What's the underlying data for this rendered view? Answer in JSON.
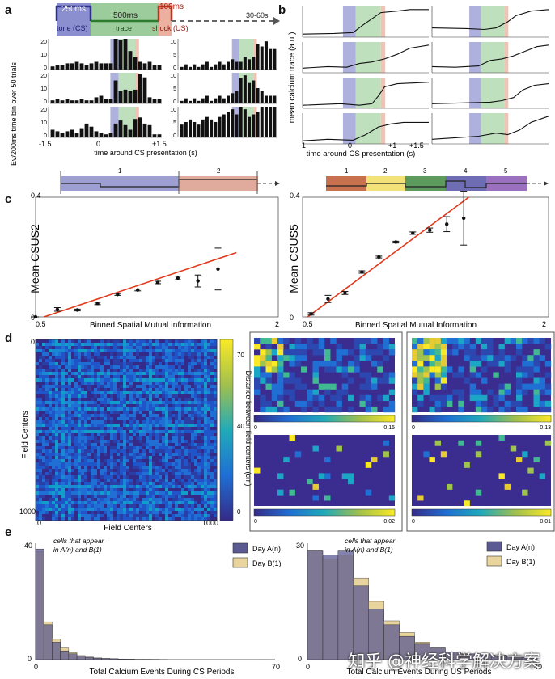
{
  "panels": {
    "a": "a",
    "b": "b",
    "c": "c",
    "d": "d",
    "e": "e"
  },
  "panel_a": {
    "timing": {
      "tone": "250ms",
      "trace": "500ms",
      "shock": "100ms",
      "iti": "30-60s"
    },
    "segment_labels": {
      "tone": "tone (CS)",
      "trace": "trace",
      "shock": "shock (US)"
    },
    "ylabel": "Ca Ev/200ms time bin over 50 trials",
    "xlabel": "time around CS presentation (s)",
    "ticks": {
      "left": "-1.5",
      "zero": "0",
      "right": "+1.5"
    },
    "ymax_left": [
      "20",
      "20",
      "20"
    ],
    "ymax_right": [
      "10",
      "10",
      "10"
    ],
    "ymid_left": [
      "10",
      "10",
      "10"
    ],
    "ymid_right": [
      "5",
      "5",
      "5"
    ],
    "zero": "0",
    "hist": [
      [
        2,
        3,
        3,
        4,
        4,
        5,
        4,
        3,
        4,
        5,
        4,
        4,
        4,
        20,
        19,
        21,
        12,
        8,
        5,
        4,
        5,
        3,
        3
      ],
      [
        2,
        3,
        2,
        3,
        2,
        2,
        3,
        2,
        2,
        4,
        5,
        3,
        3,
        15,
        8,
        9,
        8,
        9,
        19,
        17,
        4,
        3,
        3
      ],
      [
        5,
        4,
        3,
        4,
        5,
        3,
        6,
        9,
        7,
        4,
        3,
        2,
        3,
        9,
        11,
        8,
        5,
        12,
        13,
        9,
        8,
        2,
        2
      ],
      [
        1,
        2,
        1,
        2,
        1,
        2,
        3,
        1,
        2,
        3,
        2,
        3,
        4,
        3,
        3,
        5,
        4,
        5,
        10,
        9,
        11,
        8,
        8
      ],
      [
        1,
        2,
        1,
        2,
        1,
        2,
        3,
        1,
        2,
        3,
        2,
        3,
        4,
        5,
        10,
        11,
        8,
        9,
        6,
        5,
        3,
        3,
        3
      ],
      [
        5,
        6,
        7,
        6,
        5,
        7,
        8,
        7,
        6,
        8,
        9,
        10,
        11,
        9,
        12,
        11,
        8,
        9,
        10,
        12,
        14,
        15,
        14
      ]
    ]
  },
  "panel_b": {
    "ylabel": "mean calcium trace (a.u.)",
    "xlabel": "time around CS presentation (s)",
    "ticks": {
      "left": "-1",
      "zero": "0",
      "p1": "+1",
      "p15": "+1.5"
    }
  },
  "panel_c": {
    "left": {
      "ylabel": "Mean CSUS2",
      "xlabel": "Binned Spatial Mutual Information",
      "xticks": {
        "min": "0.5",
        "max": "2"
      },
      "yticks": {
        "top": "0.4",
        "zero": "0"
      },
      "bins": [
        "1",
        "2"
      ],
      "points": [
        [
          0.45,
          0.0,
          0.0
        ],
        [
          0.58,
          0.025,
          0.006
        ],
        [
          0.7,
          0.023,
          0.003
        ],
        [
          0.82,
          0.045,
          0.004
        ],
        [
          0.94,
          0.075,
          0.003
        ],
        [
          1.06,
          0.09,
          0.003
        ],
        [
          1.18,
          0.115,
          0.004
        ],
        [
          1.3,
          0.13,
          0.006
        ],
        [
          1.42,
          0.12,
          0.02
        ],
        [
          1.54,
          0.16,
          0.07
        ]
      ],
      "fit": [
        [
          0.5,
          0.0
        ],
        [
          1.65,
          0.215
        ]
      ],
      "xlim": [
        0.45,
        1.9
      ],
      "ylim": [
        0,
        0.4
      ]
    },
    "right": {
      "ylabel": "Mean CSUS5",
      "xlabel": "Binned Spatial Mutual Information",
      "xticks": {
        "min": "0.5",
        "max": "2"
      },
      "yticks": {
        "top": "0.4",
        "zero": "0"
      },
      "bins": [
        "1",
        "2",
        "3",
        "4",
        "5"
      ],
      "points": [
        [
          0.5,
          0.01,
          0.004
        ],
        [
          0.6,
          0.06,
          0.012
        ],
        [
          0.7,
          0.08,
          0.005
        ],
        [
          0.8,
          0.15,
          0.004
        ],
        [
          0.9,
          0.2,
          0.003
        ],
        [
          1.0,
          0.25,
          0.003
        ],
        [
          1.1,
          0.28,
          0.004
        ],
        [
          1.2,
          0.29,
          0.007
        ],
        [
          1.3,
          0.31,
          0.025
        ],
        [
          1.4,
          0.33,
          0.09
        ]
      ],
      "fit": [
        [
          0.48,
          0.0
        ],
        [
          1.43,
          0.4
        ]
      ],
      "xlim": [
        0.45,
        1.9
      ],
      "ylim": [
        0,
        0.4
      ]
    }
  },
  "panel_d": {
    "ylabel": "Field Centers",
    "xlabel": "Field Centers",
    "ticks": {
      "start": "0",
      "end": "1000"
    },
    "colorbar_label": "Distance between field centers (cm)",
    "colorbar_ticks": {
      "top": "70",
      "mid": "40",
      "bottom": "0"
    },
    "maps": [
      {
        "min": "0",
        "max": "0.15"
      },
      {
        "min": "0",
        "max": "0.13"
      },
      {
        "min": "0",
        "max": "0.02"
      },
      {
        "min": "0",
        "max": "0.01"
      }
    ]
  },
  "panel_e": {
    "left": {
      "annotation": [
        "cells that appear",
        "in A(n) and B(1)"
      ],
      "legend": [
        "Day A(n)",
        "Day B(1)"
      ],
      "xlabel": "Total Calcium Events During CS Periods",
      "yticks": {
        "top": "40",
        "zero": "0"
      },
      "xticks": {
        "zero": "0",
        "max": "70"
      },
      "chart_data": {
        "type": "bar",
        "series": [
          {
            "name": "Day A(n)",
            "values": [
              38,
              12,
              6,
              3,
              2,
              1.2,
              0.8,
              0.5,
              0.4,
              0.3,
              0.2,
              0.15,
              0.1,
              0.1,
              0.1,
              0.05,
              0,
              0,
              0,
              0,
              0,
              0,
              0,
              0,
              0,
              0,
              0,
              0,
              0
            ]
          },
          {
            "name": "Day B(1)",
            "values": [
              37,
              13,
              7,
              4,
              2.4,
              1.4,
              0.9,
              0.6,
              0.4,
              0.3,
              0.2,
              0.15,
              0.1,
              0.1,
              0.05,
              0.05,
              0,
              0,
              0,
              0,
              0,
              0,
              0,
              0,
              0,
              0,
              0,
              0.05,
              0
            ]
          }
        ]
      }
    },
    "right": {
      "annotation": [
        "cells that appear",
        "in A(n) and B(1)"
      ],
      "legend": [
        "Day A(n)",
        "Day B(1)"
      ],
      "xlabel": "Total Calcium Events During US Periods",
      "yticks": {
        "top": "30",
        "zero": "0"
      },
      "xticks": {
        "zero": "0",
        "max": "40"
      },
      "chart_data": {
        "type": "bar",
        "series": [
          {
            "name": "Day A(n)",
            "values": [
              28,
              27,
              28,
              19,
              13,
              9,
              6,
              4,
              3,
              2,
              1.5,
              1.5,
              1.2,
              0.8,
              0.6
            ]
          },
          {
            "name": "Day B(1)",
            "values": [
              28,
              26,
              27,
              21,
              15,
              10,
              7,
              4.5,
              3,
              2,
              1.5,
              1.5,
              1.2,
              0.8,
              0.6
            ]
          }
        ]
      }
    }
  },
  "watermark": "知乎 @神经科学解决方案",
  "colors": {
    "tone": "#7f83c4",
    "trace": "#8cc28f",
    "shock": "#e29a8b",
    "fit": "#e03a1c",
    "bin1_c": "#8e8fc9",
    "bin2_c": "#d69a8c",
    "b1": "#c8714f",
    "b2": "#f3e27a",
    "b3": "#5d9a5d",
    "b4": "#6e6db3",
    "b5": "#8b63b0",
    "dayA": "#5b5a92",
    "dayB": "#e8d49c"
  }
}
